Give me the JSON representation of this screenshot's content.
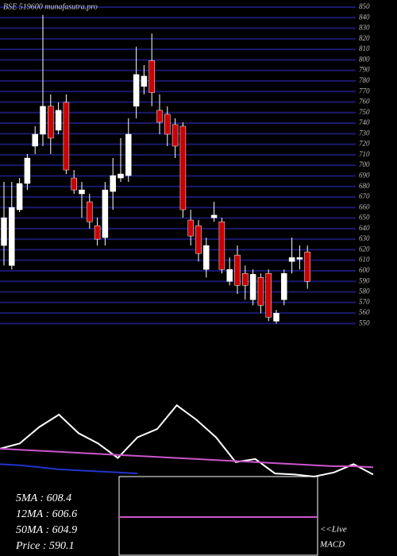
{
  "chart_data": {
    "type": "candlestick",
    "title": "BSE 519600 munafasutra.pro",
    "open": [
      624,
      605,
      657.9,
      682.8,
      718.2,
      729.5,
      756,
      733.3,
      759.7,
      688,
      673,
      665.4,
      642.8,
      631.5,
      675.2,
      688,
      690.3,
      756,
      774.8,
      799.3,
      752.2,
      748.4,
      738.6,
      737.1,
      648.1,
      642.8,
      601.3,
      650.3,
      646.5,
      590,
      614.9,
      597.5,
      572.6,
      593.7,
      597.5,
      552.2,
      572.6,
      608.8,
      611,
      617.9
    ],
    "high": [
      684.3,
      684.3,
      688,
      710.7,
      737.1,
      842.7,
      767.3,
      759.7,
      767.3,
      695.6,
      684.3,
      673,
      650.3,
      684.3,
      706.9,
      725.8,
      744.6,
      812.5,
      795,
      825,
      767.3,
      756,
      744.6,
      740.8,
      657.9,
      648.1,
      631.5,
      665.4,
      650.3,
      612.6,
      624,
      605,
      601.3,
      597.5,
      601.3,
      563,
      601.3,
      631.5,
      624,
      624
    ],
    "low": [
      605,
      601.3,
      655.6,
      676.7,
      710.7,
      718.2,
      710.7,
      729.5,
      691.8,
      673,
      650.3,
      640,
      624,
      624,
      657.9,
      684.3,
      684.3,
      744.6,
      767.3,
      756,
      729.5,
      718.2,
      706.9,
      650.3,
      624,
      608.8,
      593.7,
      646.5,
      597.5,
      586.2,
      578,
      572.6,
      567.3,
      559.8,
      552.2,
      550,
      567.3,
      597.5,
      601.3,
      583
    ],
    "close": [
      650.3,
      660.1,
      682.8,
      706.9,
      729.5,
      756,
      725.8,
      752.2,
      695.6,
      676.7,
      676.7,
      646.5,
      630,
      676.7,
      690.3,
      691.8,
      729.5,
      786.1,
      784.6,
      769,
      740.8,
      729.5,
      718.2,
      657.9,
      633,
      616.4,
      624,
      652.8,
      601.3,
      601.3,
      586.2,
      586.2,
      596.7,
      567.3,
      556,
      559.8,
      597.5,
      612.6,
      612.6,
      590
    ],
    "up_color": "#ffffff",
    "down_color": "#cc0000",
    "grid_color": "#1a1a6e",
    "ylim": [
      548,
      853
    ],
    "yticks": [
      550,
      560,
      570,
      580,
      590,
      600,
      610,
      620,
      630,
      640,
      650,
      660,
      670,
      680,
      690,
      700,
      710,
      720,
      730,
      740,
      750,
      760,
      770,
      780,
      790,
      800,
      810,
      820,
      830,
      840,
      850
    ],
    "grid": true,
    "indicator": {
      "ylim": [
        0,
        100
      ],
      "series": [
        {
          "color": "#ffffff",
          "values": [
            27,
            32,
            48,
            60,
            42,
            32,
            18,
            38,
            46,
            69,
            55,
            38,
            14,
            17,
            3,
            2,
            0,
            4,
            12,
            2
          ]
        },
        {
          "color": "#cc55cc",
          "values": [
            27,
            26,
            25,
            24,
            23,
            22,
            21,
            20,
            19,
            18,
            17,
            16,
            15,
            14,
            13,
            12,
            11,
            10,
            10,
            9
          ]
        },
        {
          "color": "#2233cc",
          "values": [
            12,
            11,
            9,
            7,
            6,
            5,
            4,
            3,
            null,
            null,
            null,
            null,
            null,
            null,
            null,
            null,
            null,
            null,
            null,
            null
          ]
        }
      ]
    },
    "annotations": [
      "5MA : 608.4",
      "12MA : 606.6",
      "50MA : 604.9",
      "Price   : 590.1",
      "<<Live",
      "MACD"
    ]
  }
}
